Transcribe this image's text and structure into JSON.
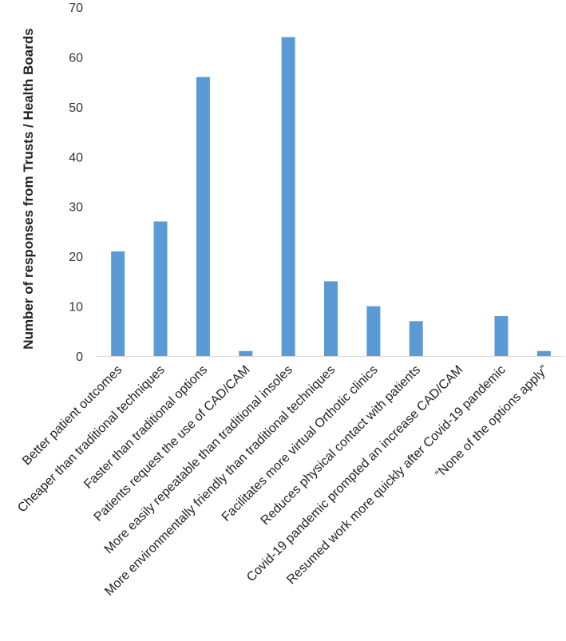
{
  "chart_data": {
    "type": "bar",
    "title": "",
    "xlabel": "",
    "ylabel": "Number of responses from Trusts / Health Boards",
    "ylim": [
      0,
      70
    ],
    "yticks": [
      0,
      10,
      20,
      30,
      40,
      50,
      60,
      70
    ],
    "grid": false,
    "bar_color": "#5B9BD5",
    "categories": [
      "Better patient outcomes",
      "Cheaper than traditional techniques",
      "Faster than traditional options",
      "Patients request the use of CAD/CAM",
      "More easily repeatable than traditional insoles",
      "More environmentally friendly than traditional techniques",
      "Facilitates more virtual Orthotic clinics",
      "Reduces physical contact with patients",
      "Covid-19 pandemic prompted an increase CAD/CAM",
      "Resumed work more quickly after Covid-19 pandemic",
      "“None of the options apply”"
    ],
    "values": [
      21,
      27,
      56,
      1,
      64,
      15,
      10,
      7,
      0,
      8,
      1
    ]
  }
}
